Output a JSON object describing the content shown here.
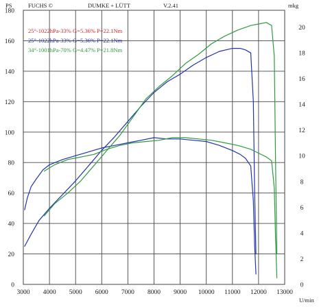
{
  "header": {
    "left_unit": "PS",
    "brand": "FUCHS ©",
    "company": "DUMKE + LÜTT",
    "version": "V.2.41",
    "right_unit": "mkg",
    "x_unit": "U/min"
  },
  "chart_data": {
    "type": "line",
    "x_ticks": [
      3000,
      4000,
      5000,
      6000,
      7000,
      8000,
      9000,
      10000,
      11000,
      12000,
      13000
    ],
    "x_tick_labels": [
      "3000",
      "4000",
      "5000",
      "6000",
      "7000",
      "8000",
      "9000",
      "10000",
      "11000",
      "12000",
      "13000"
    ],
    "y_left_ticks": [
      0,
      20,
      40,
      60,
      80,
      100,
      120,
      140,
      160,
      180
    ],
    "y_left_tick_labels": [
      "0",
      "20",
      "40",
      "60",
      "80",
      "100",
      "120",
      "140",
      "160",
      "180"
    ],
    "y_right_ticks": [
      0,
      2,
      4,
      6,
      8,
      10,
      12,
      14,
      16,
      18,
      20
    ],
    "y_right_tick_labels": [
      "0",
      "2",
      "4",
      "6",
      "8",
      "10",
      "12",
      "14",
      "16",
      "18",
      "20"
    ],
    "xlim": [
      3000,
      13000
    ],
    "ylim_left": [
      0,
      180
    ],
    "ylim_right": [
      0,
      21.3
    ],
    "grid": true,
    "legend_position": "top-left",
    "legend": [
      {
        "label": "25°-1022hPa-33% G=5.36% P=22.1Nm",
        "color": "#d42a2a"
      },
      {
        "label": "25°-1022hPa-33% G=5.36% P=22.1Nm",
        "color": "#2233aa"
      },
      {
        "label": "34°-1001hPa-70% G=4.47% P=21.8Nm",
        "color": "#2e9a3e"
      }
    ],
    "series": [
      {
        "name": "25°-1022hPa-33% G=5.36% P=22.1Nm",
        "quantity": "power",
        "axis": "left",
        "color": "#2233aa",
        "x": [
          3050,
          3300,
          3600,
          4000,
          4500,
          5000,
          5500,
          6000,
          6500,
          7000,
          7500,
          8000,
          8500,
          9000,
          9500,
          10000,
          10500,
          11000,
          11300,
          11500,
          11700,
          11800,
          11850,
          11900
        ],
        "y": [
          25,
          33,
          42,
          50,
          59,
          68,
          78,
          88,
          97,
          107,
          117,
          126,
          133,
          138,
          144,
          149,
          153,
          155,
          155,
          154,
          152,
          120,
          60,
          20
        ]
      },
      {
        "name": "25°-1022hPa-33% G=5.36% P=22.1Nm",
        "quantity": "torque",
        "axis": "right",
        "color": "#2233aa",
        "x": [
          3050,
          3150,
          3300,
          3500,
          3750,
          4000,
          4500,
          5000,
          5500,
          6000,
          6500,
          7000,
          7500,
          8000,
          8500,
          9000,
          9500,
          10000,
          10500,
          11000,
          11300,
          11500,
          11700,
          11800,
          11850,
          11900
        ],
        "y": [
          5.8,
          6.7,
          7.6,
          8.2,
          8.9,
          9.3,
          9.7,
          10.0,
          10.3,
          10.6,
          10.8,
          11.0,
          11.2,
          11.4,
          11.3,
          11.3,
          11.2,
          11.1,
          10.8,
          10.4,
          10.1,
          9.8,
          9.2,
          6.5,
          3.0,
          0.8
        ]
      },
      {
        "name": "34°-1001hPa-70% G=4.47% P=21.8Nm",
        "quantity": "power",
        "axis": "left",
        "color": "#2e9a3e",
        "x": [
          3800,
          4200,
          4700,
          5200,
          5700,
          6200,
          6700,
          7200,
          7700,
          8200,
          8700,
          9200,
          9700,
          10200,
          10700,
          11200,
          11700,
          12000,
          12300,
          12500,
          12600,
          12650,
          12700
        ],
        "y": [
          45,
          53,
          60,
          68,
          78,
          88,
          98,
          110,
          122,
          130,
          137,
          145,
          151,
          158,
          163,
          167,
          170,
          171,
          172,
          170,
          150,
          80,
          20
        ]
      },
      {
        "name": "34°-1001hPa-70% G=4.47% P=21.8Nm",
        "quantity": "torque",
        "axis": "right",
        "color": "#2e9a3e",
        "x": [
          3800,
          4200,
          4700,
          5200,
          5700,
          6200,
          6700,
          7200,
          7700,
          8200,
          8700,
          9200,
          9700,
          10200,
          10700,
          11200,
          11700,
          12000,
          12300,
          12500,
          12600,
          12650,
          12700
        ],
        "y": [
          8.8,
          9.3,
          9.7,
          9.9,
          10.1,
          10.5,
          10.8,
          11.0,
          11.1,
          11.2,
          11.4,
          11.4,
          11.3,
          11.2,
          11.0,
          10.8,
          10.5,
          10.2,
          9.9,
          9.6,
          7.5,
          3.5,
          0.5
        ]
      }
    ]
  }
}
